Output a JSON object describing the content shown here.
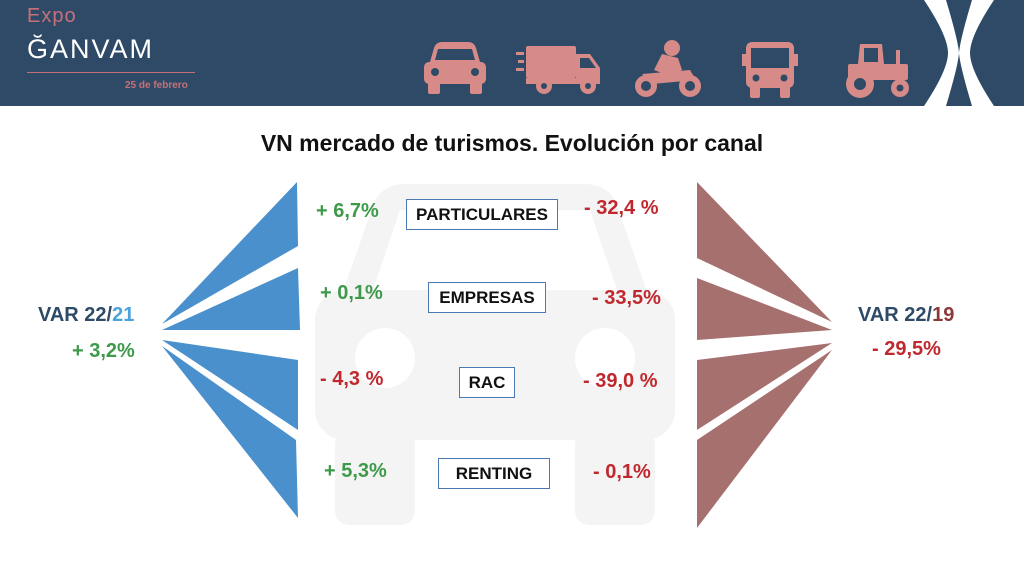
{
  "header": {
    "logo_expo": "Expo",
    "logo_ganvam": "ĞANVAM",
    "date": "25 de febrero",
    "vehicle_icons": [
      "car-icon",
      "truck-icon",
      "motorcycle-icon",
      "bus-icon",
      "tractor-icon"
    ]
  },
  "title": "VN mercado de turismos. Evolución por canal",
  "left_var": {
    "label_a": "VAR 22/",
    "label_b": "21",
    "value": "+ 3,2%"
  },
  "right_var": {
    "label_a": "VAR 22/",
    "label_b": "19",
    "value": "- 29,5%"
  },
  "channels": [
    {
      "name": "PARTICULARES",
      "var_22_21": "+ 6,7%",
      "var_22_19": "- 32,4 %"
    },
    {
      "name": "EMPRESAS",
      "var_22_21": "+ 0,1%",
      "var_22_19": "- 33,5%"
    },
    {
      "name": "RAC",
      "var_22_21": "- 4,3 %",
      "var_22_19": "- 39,0 %"
    },
    {
      "name": "RENTING",
      "var_22_21": "+ 5,3%",
      "var_22_19": "- 0,1%"
    }
  ],
  "colors": {
    "header_bg": "#2e4a66",
    "accent_pink": "#c8707a",
    "wedge_blue": "#4a90cc",
    "wedge_brown": "#a6706e",
    "positive": "#3e9a4a",
    "negative": "#c0282e"
  }
}
